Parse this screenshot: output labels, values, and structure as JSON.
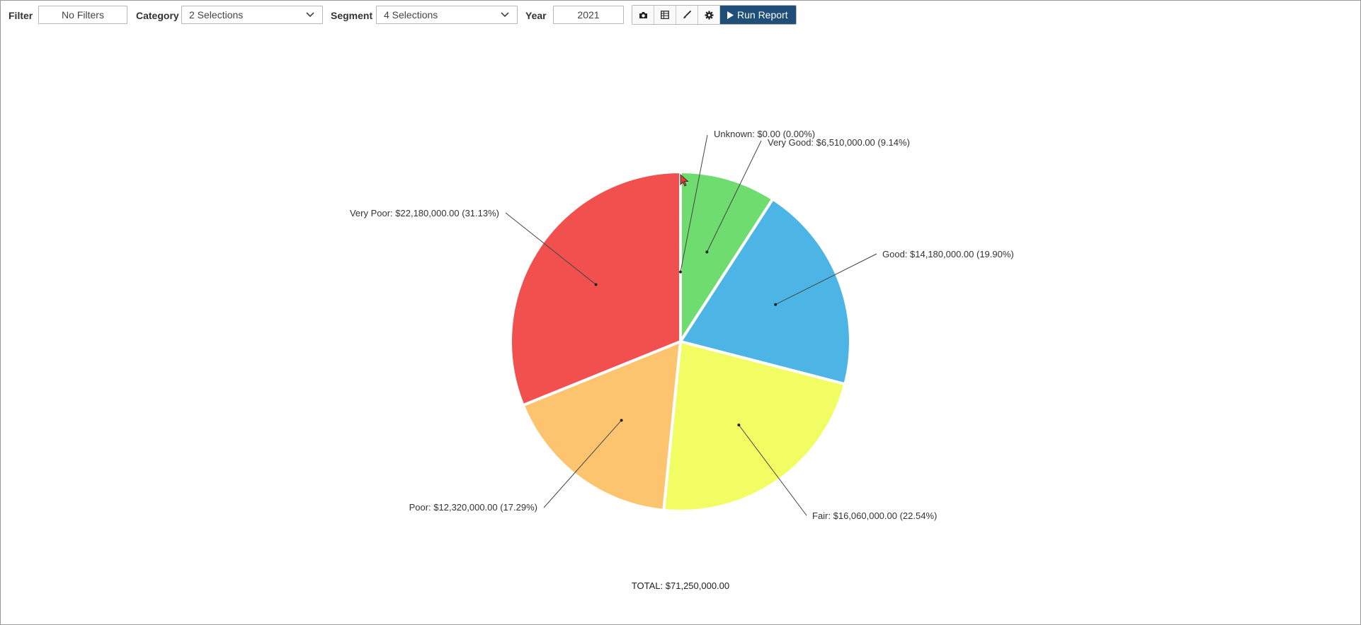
{
  "toolbar": {
    "filter_label": "Filter",
    "filter_value": "No Filters",
    "category_label": "Category",
    "category_value": "2 Selections",
    "segment_label": "Segment",
    "segment_value": "4 Selections",
    "year_label": "Year",
    "year_value": "2021",
    "icons": [
      "camera-icon",
      "table-icon",
      "brush-icon",
      "gear-icon"
    ],
    "run_label": "Run Report"
  },
  "colors": {
    "accent": "#1f4e79",
    "Unknown": "#b0b0b0",
    "Very Good": "#6fdc6f",
    "Good": "#4db5e6",
    "Fair": "#f2fd64",
    "Poor": "#fdc470",
    "Very Poor": "#f24f4f"
  },
  "chart_data": {
    "type": "pie",
    "start_angle_deg": 0,
    "direction": "clockwise",
    "slices": [
      {
        "name": "Unknown",
        "value": 0,
        "percent": 0.0,
        "label": "Unknown: $0.00 (0.00%)"
      },
      {
        "name": "Very Good",
        "value": 6510000,
        "percent": 9.14,
        "label": "Very Good: $6,510,000.00 (9.14%)"
      },
      {
        "name": "Good",
        "value": 14180000,
        "percent": 19.9,
        "label": "Good: $14,180,000.00 (19.90%)"
      },
      {
        "name": "Fair",
        "value": 16060000,
        "percent": 22.54,
        "label": "Fair: $16,060,000.00 (22.54%)"
      },
      {
        "name": "Poor",
        "value": 12320000,
        "percent": 17.29,
        "label": "Poor: $12,320,000.00 (17.29%)"
      },
      {
        "name": "Very Poor",
        "value": 22180000,
        "percent": 31.13,
        "label": "Very Poor: $22,180,000.00 (31.13%)"
      }
    ],
    "total_label": "TOTAL: $71,250,000.00"
  }
}
